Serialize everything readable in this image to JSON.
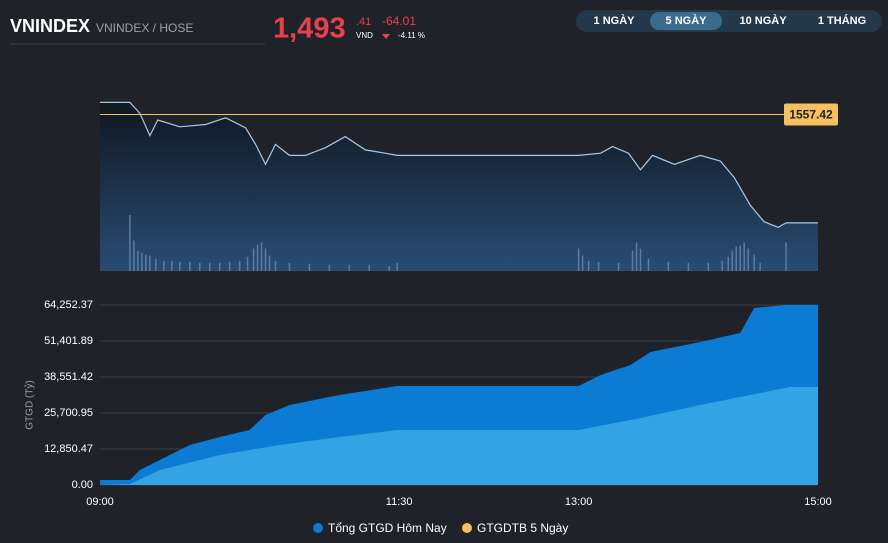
{
  "header": {
    "symbol": "VNINDEX",
    "exchange": "VNINDEX / HOSE",
    "price_int": "1,493",
    "price_dec": ".41",
    "currency": "VND",
    "change": "-64.01",
    "change_pct": "-4.11 %"
  },
  "tabs": {
    "items": [
      "1 NGÀY",
      "5 NGÀY",
      "10 NGÀY",
      "1 THÁNG"
    ],
    "active": 1
  },
  "chart_data": [
    {
      "type": "line",
      "color": "#a9c8e6",
      "xlim": [
        "09:00",
        "15:00"
      ],
      "ylim": [
        1465,
        1566
      ],
      "reference": {
        "value": 1557.42,
        "label": "1557.42",
        "color": "#f5c060"
      },
      "x": [
        "09:00",
        "09:15",
        "09:20",
        "09:25",
        "09:29",
        "09:40",
        "09:53",
        "10:03",
        "10:13",
        "10:18",
        "10:23",
        "10:28",
        "10:35",
        "10:43",
        "10:53",
        "11:03",
        "11:13",
        "11:23",
        "11:29",
        "13:00",
        "13:11",
        "13:17",
        "13:25",
        "13:31",
        "13:37",
        "13:48",
        "14:01",
        "14:11",
        "14:18",
        "14:26",
        "14:33",
        "14:40",
        "14:44",
        "15:00"
      ],
      "values": [
        1564.6,
        1564.6,
        1558.1,
        1545.0,
        1554.2,
        1550.2,
        1551.5,
        1555.5,
        1549.6,
        1539.8,
        1528.0,
        1539.8,
        1533.3,
        1533.3,
        1537.8,
        1544.4,
        1536.5,
        1534.6,
        1533.3,
        1533.3,
        1534.6,
        1538.5,
        1534.6,
        1524.8,
        1533.3,
        1528.0,
        1533.3,
        1530.0,
        1520.2,
        1503.9,
        1494.1,
        1490.8,
        1493.4,
        1493.4
      ],
      "volume": {
        "color": "#5b7c9c",
        "x": [
          "09:15",
          "09:17",
          "09:19",
          "09:21",
          "09:23",
          "09:25",
          "09:28",
          "09:32",
          "09:36",
          "09:40",
          "09:45",
          "09:50",
          "09:55",
          "10:00",
          "10:05",
          "10:10",
          "10:14",
          "10:17",
          "10:19",
          "10:21",
          "10:23",
          "10:25",
          "10:28",
          "10:35",
          "10:45",
          "10:55",
          "11:05",
          "11:15",
          "11:25",
          "11:29",
          "13:00",
          "13:02",
          "13:05",
          "13:10",
          "13:20",
          "13:27",
          "13:29",
          "13:31",
          "13:35",
          "13:45",
          "13:55",
          "14:05",
          "14:12",
          "14:15",
          "14:17",
          "14:19",
          "14:21",
          "14:23",
          "14:25",
          "14:28",
          "14:31",
          "14:44"
        ],
        "values": [
          55,
          30,
          20,
          18,
          16,
          15,
          12,
          10,
          10,
          9,
          9,
          8,
          8,
          8,
          9,
          10,
          14,
          22,
          26,
          28,
          22,
          15,
          10,
          8,
          7,
          6,
          6,
          6,
          5,
          8,
          22,
          15,
          10,
          9,
          8,
          20,
          28,
          22,
          12,
          9,
          8,
          8,
          10,
          14,
          20,
          24,
          25,
          28,
          22,
          16,
          8,
          28
        ]
      }
    },
    {
      "type": "area",
      "ylabel": "GTGD (Tỷ)",
      "xlim": [
        "09:00",
        "15:00"
      ],
      "xticks": [
        "09:00",
        "11:30",
        "13:00",
        "15:00"
      ],
      "ylim": [
        0,
        64252.37
      ],
      "yticks": [
        {
          "value": 0,
          "label": "0.00"
        },
        {
          "value": 12850.47,
          "label": "12,850.47"
        },
        {
          "value": 25700.95,
          "label": "25,700.95"
        },
        {
          "value": 38551.42,
          "label": "38,551.42"
        },
        {
          "value": 51401.89,
          "label": "51,401.89"
        },
        {
          "value": 64252.37,
          "label": "64,252.37"
        }
      ],
      "grid": true,
      "series": [
        {
          "name": "Tổng GTGD Hôm Nay",
          "color": "#0b7bd3",
          "x": [
            "09:00",
            "09:15",
            "09:20",
            "09:30",
            "09:45",
            "10:00",
            "10:15",
            "10:23",
            "10:35",
            "11:00",
            "11:29",
            "13:00",
            "13:11",
            "13:26",
            "13:36",
            "14:01",
            "14:21",
            "14:28",
            "14:44",
            "15:00"
          ],
          "values": [
            1785,
            1785,
            5354,
            8924,
            14278,
            17134,
            19633,
            24987,
            28557,
            32126,
            35339,
            35339,
            39265,
            42835,
            47476,
            51045,
            54258,
            63182,
            64252,
            64252
          ]
        },
        {
          "name": "GTGDTB 5 Ngày",
          "color": "#f5c060",
          "fill": "#33a3e3",
          "x": [
            "09:00",
            "09:15",
            "09:30",
            "10:00",
            "10:30",
            "11:00",
            "11:29",
            "13:00",
            "13:31",
            "14:01",
            "14:31",
            "14:46",
            "15:00"
          ],
          "values": [
            0,
            357,
            5354,
            10709,
            14278,
            17134,
            19633,
            19633,
            23916,
            28557,
            32840,
            34982,
            34982
          ]
        }
      ]
    }
  ]
}
